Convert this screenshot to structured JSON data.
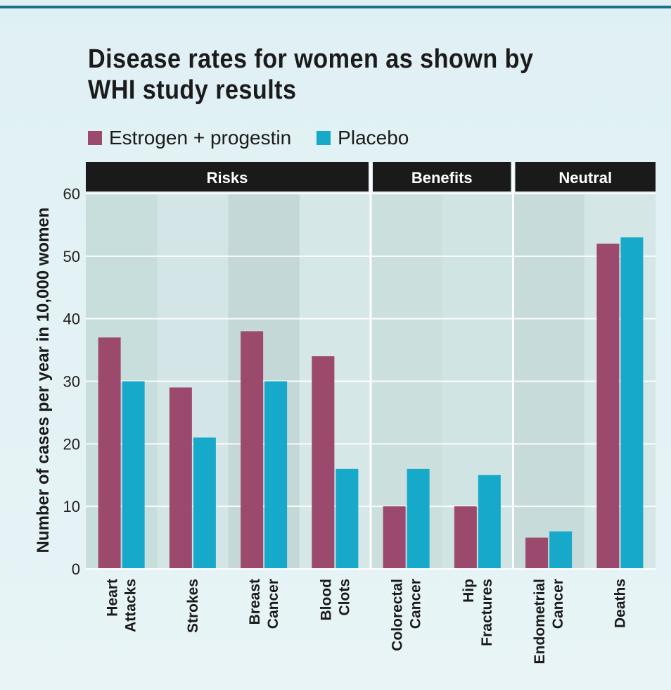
{
  "chart_data": {
    "type": "bar",
    "title": "Disease rates for women as shown by WHI study results",
    "ylabel": "Number of cases per year in 10,000 women",
    "ylim": [
      0,
      60
    ],
    "yticks": [
      0,
      10,
      20,
      30,
      40,
      50,
      60
    ],
    "grid": true,
    "legend_position": "top-left",
    "groups": [
      {
        "label": "Risks",
        "categories": [
          0,
          1,
          2,
          3
        ]
      },
      {
        "label": "Benefits",
        "categories": [
          4,
          5
        ]
      },
      {
        "label": "Neutral",
        "categories": [
          6,
          7
        ]
      }
    ],
    "categories": [
      [
        "Heart",
        "Attacks"
      ],
      [
        "Strokes"
      ],
      [
        "Breast",
        "Cancer"
      ],
      [
        "Blood",
        "Clots"
      ],
      [
        "Colorectal",
        "Cancer"
      ],
      [
        "Hip",
        "Fractures"
      ],
      [
        "Endometrial",
        "Cancer"
      ],
      [
        "Deaths"
      ]
    ],
    "series": [
      {
        "name": "Estrogen + progestin",
        "color": "#9b4a6d",
        "values": [
          37,
          29,
          38,
          34,
          10,
          10,
          5,
          52
        ]
      },
      {
        "name": "Placebo",
        "color": "#16a9c9",
        "values": [
          30,
          21,
          30,
          16,
          16,
          15,
          6,
          53
        ]
      }
    ]
  }
}
